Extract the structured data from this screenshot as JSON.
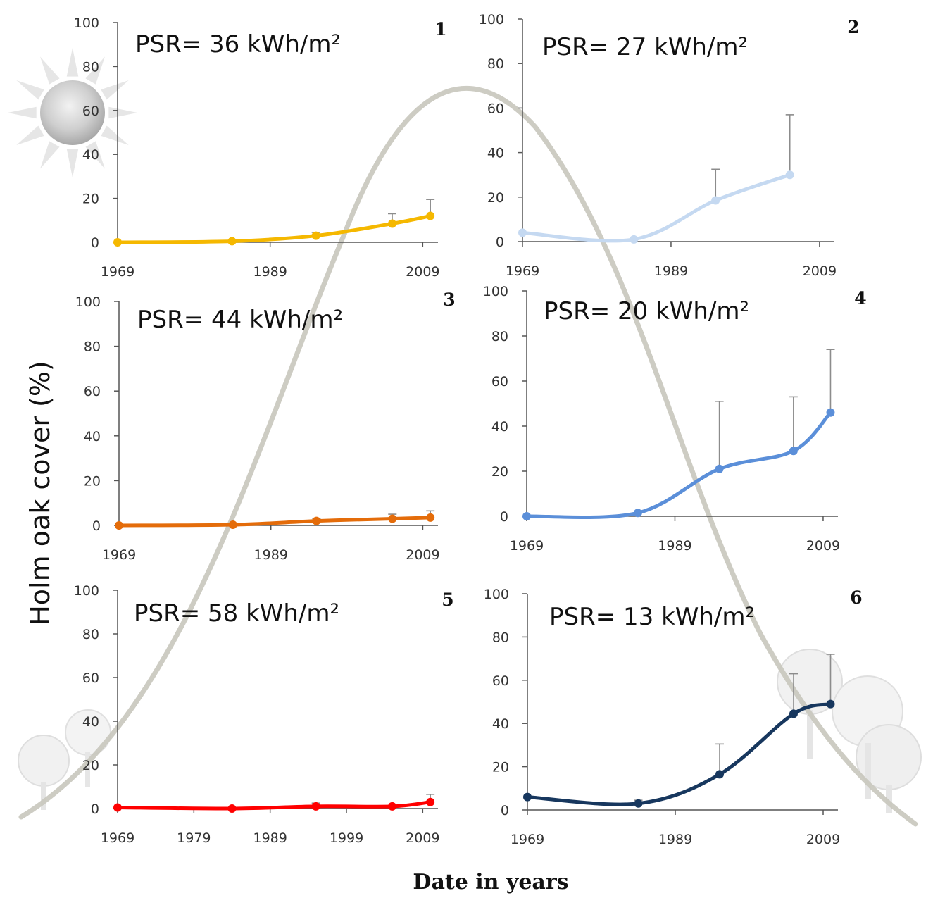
{
  "figure": {
    "ylabel": "Holm oak cover (%)",
    "xlabel": "Date in years"
  },
  "chart_data": [
    {
      "type": "line",
      "panel": "1",
      "psr_label": "PSR= 36 kWh/m²",
      "color": "#f5b800",
      "xlim": [
        1969,
        2011
      ],
      "ylim": [
        0,
        100
      ],
      "xticks": [
        1969,
        1989,
        2009
      ],
      "yticks": [
        0,
        20,
        40,
        60,
        80,
        100
      ],
      "x": [
        1969,
        1984,
        1995,
        2005,
        2010
      ],
      "values": [
        0,
        0.5,
        3,
        8.5,
        12
      ],
      "err": [
        0,
        0,
        1.5,
        4.5,
        7.5
      ]
    },
    {
      "type": "line",
      "panel": "2",
      "psr_label": "PSR= 27 kWh/m²",
      "color": "#c5d9f1",
      "xlim": [
        1969,
        2011
      ],
      "ylim": [
        0,
        100
      ],
      "xticks": [
        1969,
        1989,
        2009
      ],
      "yticks": [
        0,
        20,
        40,
        60,
        80,
        100
      ],
      "x": [
        1969,
        1984,
        1995,
        2005
      ],
      "values": [
        4,
        1,
        18.5,
        30
      ],
      "err": [
        0,
        0,
        14,
        27
      ]
    },
    {
      "type": "line",
      "panel": "3",
      "psr_label": "PSR= 44 kWh/m²",
      "color": "#e46c0a",
      "xlim": [
        1969,
        2011
      ],
      "ylim": [
        0,
        100
      ],
      "xticks": [
        1969,
        1989,
        2009
      ],
      "yticks": [
        0,
        20,
        40,
        60,
        80,
        100
      ],
      "x": [
        1969,
        1984,
        1995,
        2005,
        2010
      ],
      "values": [
        0,
        0.3,
        2,
        3,
        3.5
      ],
      "err": [
        0,
        0,
        1,
        2,
        3
      ]
    },
    {
      "type": "line",
      "panel": "4",
      "psr_label": "PSR= 20 kWh/m²",
      "color": "#5b8fd9",
      "xlim": [
        1969,
        2011
      ],
      "ylim": [
        0,
        100
      ],
      "xticks": [
        1969,
        1989,
        2009
      ],
      "yticks": [
        0,
        20,
        40,
        60,
        80,
        100
      ],
      "x": [
        1969,
        1984,
        1995,
        2005,
        2010
      ],
      "values": [
        0,
        1.5,
        21,
        29,
        46
      ],
      "err": [
        0,
        0,
        30,
        24,
        28
      ]
    },
    {
      "type": "line",
      "panel": "5",
      "psr_label": "PSR= 58 kWh/m²",
      "color": "#ff0000",
      "xlim": [
        1969,
        2011
      ],
      "ylim": [
        0,
        100
      ],
      "xticks": [
        1969,
        1979,
        1989,
        1999,
        2009
      ],
      "yticks": [
        0,
        20,
        40,
        60,
        80,
        100
      ],
      "x": [
        1969,
        1984,
        1995,
        2005,
        2010
      ],
      "values": [
        0.5,
        0,
        1,
        1,
        3
      ],
      "err": [
        0,
        0,
        1.5,
        0,
        3.5
      ]
    },
    {
      "type": "line",
      "panel": "6",
      "psr_label": "PSR= 13 kWh/m²",
      "color": "#17375e",
      "xlim": [
        1969,
        2011
      ],
      "ylim": [
        0,
        100
      ],
      "xticks": [
        1969,
        1989,
        2009
      ],
      "yticks": [
        0,
        20,
        40,
        60,
        80,
        100
      ],
      "x": [
        1969,
        1984,
        1995,
        2005,
        2010
      ],
      "values": [
        6,
        3,
        16.5,
        44.5,
        49
      ],
      "err": [
        0,
        1.5,
        14,
        18.5,
        23
      ]
    }
  ]
}
